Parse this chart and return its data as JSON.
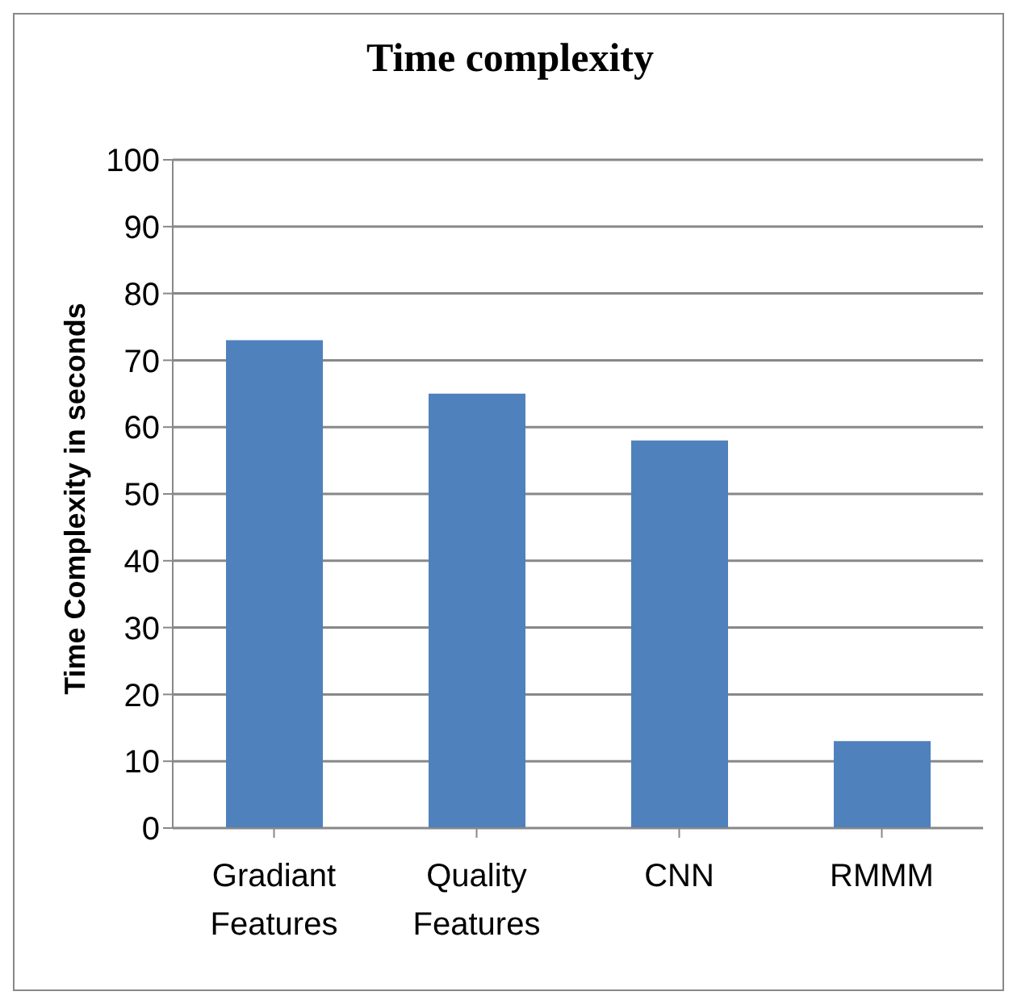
{
  "chart_data": {
    "type": "bar",
    "title": "Time complexity",
    "ylabel": "Time Complexity in seconds",
    "categories": [
      "Gradiant Features",
      "Quality Features",
      "CNN",
      "RMMM"
    ],
    "values": [
      73,
      65,
      58,
      13
    ],
    "color": "#4f81bd",
    "ylim": [
      0,
      100
    ],
    "yticks": [
      0,
      10,
      20,
      30,
      40,
      50,
      60,
      70,
      80,
      90,
      100
    ],
    "grid": "y"
  }
}
